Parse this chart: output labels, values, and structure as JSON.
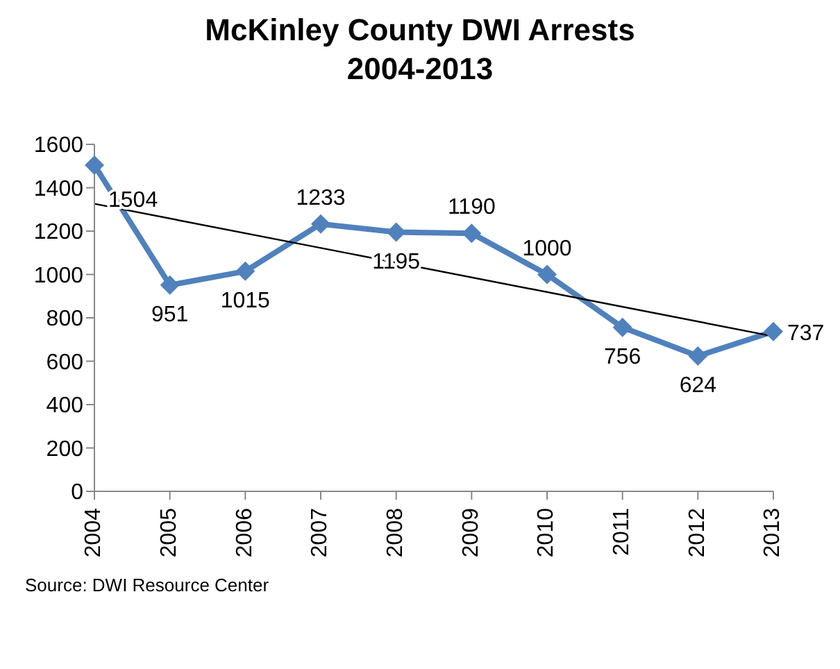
{
  "chart_data": {
    "type": "line",
    "title": "McKinley County DWI Arrests\n2004-2013",
    "categories": [
      "2004",
      "2005",
      "2006",
      "2007",
      "2008",
      "2009",
      "2010",
      "2011",
      "2012",
      "2013"
    ],
    "series": [
      {
        "color": "#4f81bd",
        "values": [
          1504,
          951,
          1015,
          1233,
          1195,
          1190,
          1000,
          756,
          624,
          737
        ],
        "marker": "diamond",
        "data_labels": true
      },
      {
        "type": "line",
        "color": "#000000",
        "values": [
          1326,
          null,
          null,
          null,
          null,
          null,
          null,
          null,
          null,
          715
        ],
        "marker": "none"
      }
    ],
    "ylim": [
      0,
      1600
    ],
    "yticks": [
      0,
      200,
      400,
      600,
      800,
      1000,
      1200,
      1400,
      1600
    ],
    "grid": false,
    "legend": false,
    "annotations": [
      "Source: DWI Resource Center"
    ]
  }
}
